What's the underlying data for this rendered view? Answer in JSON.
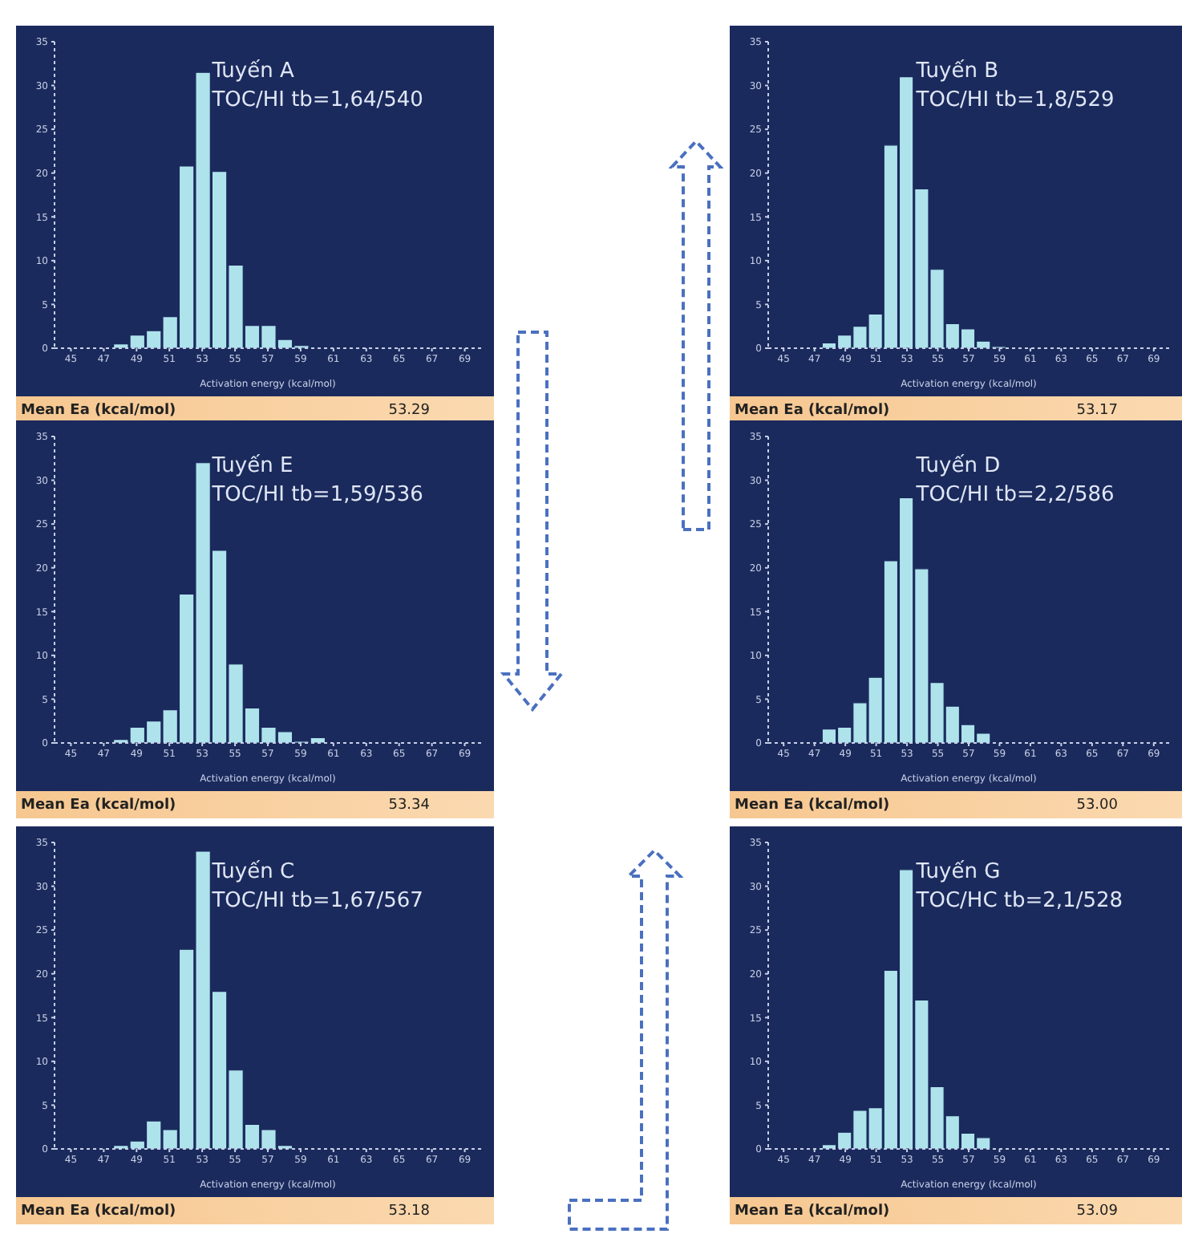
{
  "chart_data": [
    {
      "type": "histogram",
      "title": "Tuyến A",
      "subtitle": "TOC/HI tb=1,64/540",
      "xlabel": "Activation energy (kcal/mol)",
      "bins": [
        47.5,
        48.5,
        49.5,
        50.5,
        51.5,
        52.5,
        53.5,
        54.5,
        55.5,
        56.5,
        57.5,
        58.5,
        59.5
      ],
      "values": [
        0.5,
        1.5,
        2,
        3.6,
        20.8,
        31.5,
        20.2,
        9.5,
        2.6,
        2.6,
        1,
        0.3
      ],
      "color": "#aee3ec",
      "xlim": [
        44,
        70
      ],
      "xticks": [
        45,
        47,
        49,
        51,
        53,
        55,
        57,
        59,
        61,
        63,
        65,
        67,
        69
      ],
      "ylim": [
        0,
        35
      ],
      "yticks": [
        0,
        5,
        10,
        15,
        20,
        25,
        30,
        35
      ],
      "annotations": [
        "Mean Ea (kcal/mol)",
        "53.29"
      ]
    },
    {
      "type": "histogram",
      "title": "Tuyến B",
      "subtitle": "TOC/HI tb=1,8/529",
      "xlabel": "Activation energy (kcal/mol)",
      "bins": [
        47.5,
        48.5,
        49.5,
        50.5,
        51.5,
        52.5,
        53.5,
        54.5,
        55.5,
        56.5,
        57.5,
        58.5,
        59.5
      ],
      "values": [
        0.6,
        1.5,
        2.5,
        3.9,
        23.2,
        31,
        18.2,
        9,
        2.8,
        2.2,
        0.8,
        0.2
      ],
      "color": "#aee3ec",
      "xlim": [
        44,
        70
      ],
      "xticks": [
        45,
        47,
        49,
        51,
        53,
        55,
        57,
        59,
        61,
        63,
        65,
        67,
        69
      ],
      "ylim": [
        0,
        35
      ],
      "yticks": [
        0,
        5,
        10,
        15,
        20,
        25,
        30,
        35
      ],
      "annotations": [
        "Mean Ea (kcal/mol)",
        "53.17"
      ]
    },
    {
      "type": "histogram",
      "title": "Tuyến E",
      "subtitle": "TOC/HI tb=1,59/536",
      "xlabel": "Activation energy (kcal/mol)",
      "bins": [
        47.5,
        48.5,
        49.5,
        50.5,
        51.5,
        52.5,
        53.5,
        54.5,
        55.5,
        56.5,
        57.5,
        58.5,
        59.5,
        60.5
      ],
      "values": [
        0.4,
        1.8,
        2.5,
        3.8,
        17,
        32,
        22,
        9,
        4,
        1.8,
        1.3,
        0.2,
        0.6
      ],
      "color": "#aee3ec",
      "xlim": [
        44,
        70
      ],
      "xticks": [
        45,
        47,
        49,
        51,
        53,
        55,
        57,
        59,
        61,
        63,
        65,
        67,
        69
      ],
      "ylim": [
        0,
        35
      ],
      "yticks": [
        0,
        5,
        10,
        15,
        20,
        25,
        30,
        35
      ],
      "annotations": [
        "Mean Ea (kcal/mol)",
        "53.34"
      ]
    },
    {
      "type": "histogram",
      "title": "Tuyến D",
      "subtitle": "TOC/HI tb=2,2/586",
      "xlabel": "Activation energy (kcal/mol)",
      "bins": [
        47.5,
        48.5,
        49.5,
        50.5,
        51.5,
        52.5,
        53.5,
        54.5,
        55.5,
        56.5,
        57.5,
        58.5
      ],
      "values": [
        1.6,
        1.8,
        4.6,
        7.5,
        20.8,
        28,
        19.9,
        6.9,
        4.2,
        2.1,
        1.1
      ],
      "color": "#aee3ec",
      "xlim": [
        44,
        70
      ],
      "xticks": [
        45,
        47,
        49,
        51,
        53,
        55,
        57,
        59,
        61,
        63,
        65,
        67,
        69
      ],
      "ylim": [
        0,
        35
      ],
      "yticks": [
        0,
        5,
        10,
        15,
        20,
        25,
        30,
        35
      ],
      "annotations": [
        "Mean Ea (kcal/mol)",
        "53.00"
      ]
    },
    {
      "type": "histogram",
      "title": "Tuyến C",
      "subtitle": "TOC/HI tb=1,67/567",
      "xlabel": "Activation energy (kcal/mol)",
      "bins": [
        47.5,
        48.5,
        49.5,
        50.5,
        51.5,
        52.5,
        53.5,
        54.5,
        55.5,
        56.5,
        57.5,
        58.5
      ],
      "values": [
        0.4,
        0.9,
        3.2,
        2.2,
        22.8,
        34,
        18,
        9,
        2.8,
        2.2,
        0.4
      ],
      "color": "#aee3ec",
      "xlim": [
        44,
        70
      ],
      "xticks": [
        45,
        47,
        49,
        51,
        53,
        55,
        57,
        59,
        61,
        63,
        65,
        67,
        69
      ],
      "ylim": [
        0,
        35
      ],
      "yticks": [
        0,
        5,
        10,
        15,
        20,
        25,
        30,
        35
      ],
      "annotations": [
        "Mean Ea (kcal/mol)",
        "53.18"
      ]
    },
    {
      "type": "histogram",
      "title": "Tuyến G",
      "subtitle": "TOC/HC tb=2,1/528",
      "xlabel": "Activation energy (kcal/mol)",
      "bins": [
        47.5,
        48.5,
        49.5,
        50.5,
        51.5,
        52.5,
        53.5,
        54.5,
        55.5,
        56.5,
        57.5,
        58.5
      ],
      "values": [
        0.5,
        1.9,
        4.4,
        4.7,
        20.4,
        31.9,
        17,
        7.1,
        3.8,
        1.8,
        1.3
      ],
      "color": "#aee3ec",
      "xlim": [
        44,
        70
      ],
      "xticks": [
        45,
        47,
        49,
        51,
        53,
        55,
        57,
        59,
        61,
        63,
        65,
        67,
        69
      ],
      "ylim": [
        0,
        35
      ],
      "yticks": [
        0,
        5,
        10,
        15,
        20,
        25,
        30,
        35
      ],
      "annotations": [
        "Mean Ea (kcal/mol)",
        "53.09"
      ]
    }
  ]
}
